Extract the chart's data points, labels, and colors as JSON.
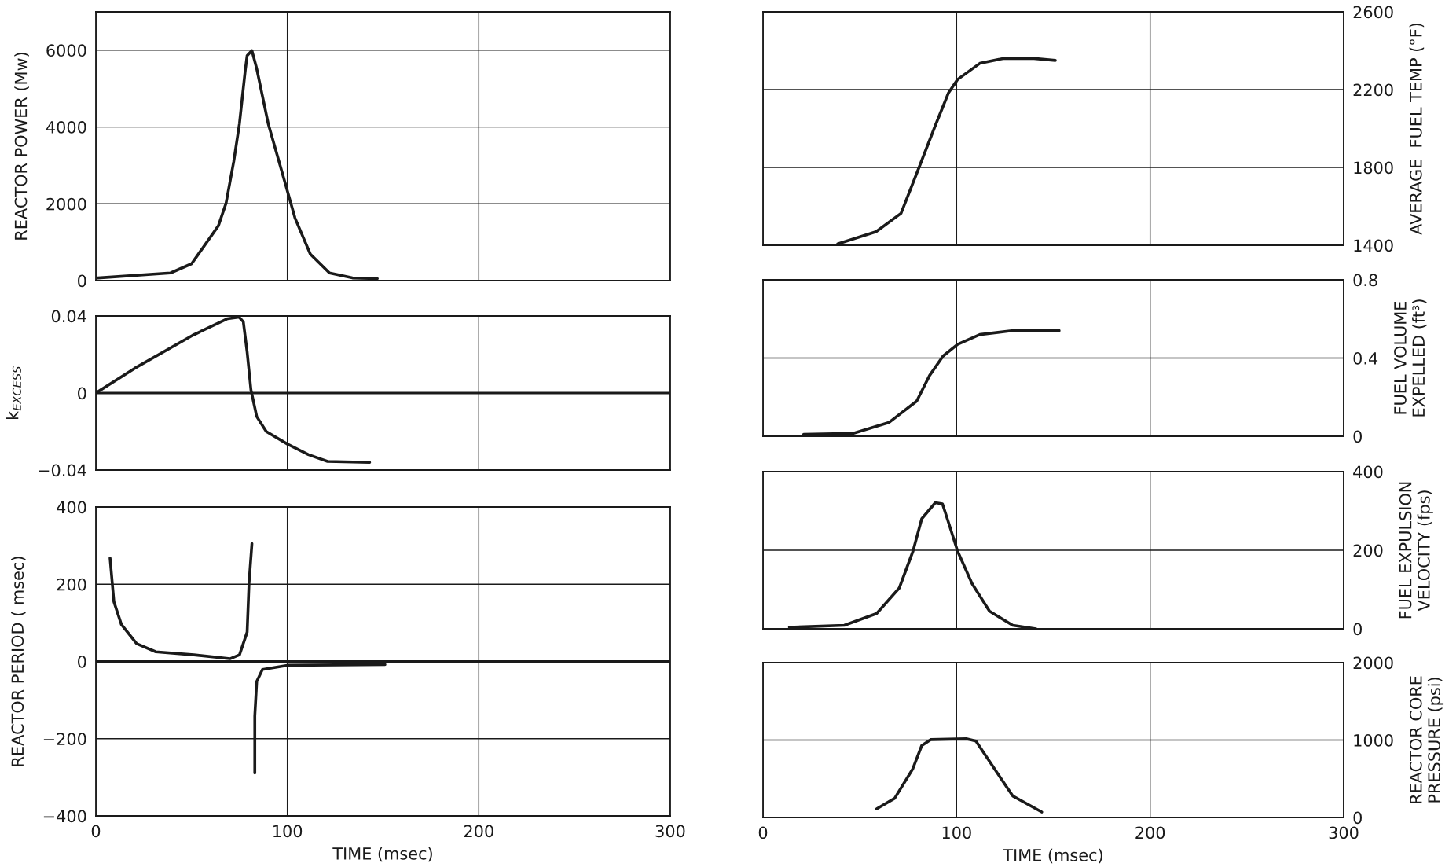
{
  "chart_data": [
    {
      "type": "line",
      "ylabel": "REACTOR POWER (Mw)",
      "xlim": [
        0,
        300
      ],
      "xticks": [
        0,
        100,
        200,
        300
      ],
      "ylim": [
        0,
        7000
      ],
      "yticks": [
        0,
        2000,
        4000,
        6000
      ],
      "grid": true,
      "tick_labels": "y",
      "series": [
        {
          "color": "#1a1a1a",
          "x": [
            1,
            39,
            50,
            64,
            68,
            72,
            75,
            78,
            79,
            81.5,
            84,
            90,
            99.6,
            104,
            112,
            122,
            134,
            147
          ],
          "values": [
            70,
            200,
            440,
            1430,
            2020,
            3100,
            4090,
            5470,
            5860,
            5990,
            5520,
            4090,
            2410,
            1630,
            690,
            200,
            70,
            50
          ]
        }
      ]
    },
    {
      "type": "line",
      "ylabel": "k$_{EXCESS}$",
      "xlim": [
        0,
        300
      ],
      "xticks": [
        0,
        100,
        200,
        300
      ],
      "ylim": [
        -0.04,
        0.04
      ],
      "yticks": [
        {
          "value": -0.04,
          "label": "−0.04"
        },
        0,
        0.04
      ],
      "grid": true,
      "tick_labels": "y",
      "ref_lines": [
        {
          "axis": "y",
          "value": 0,
          "color": "#1a1a1a"
        }
      ],
      "series": [
        {
          "color": "#1a1a1a",
          "x": [
            0,
            20.5,
            50.6,
            68.8,
            74.8,
            77,
            79,
            81,
            84,
            89,
            100,
            111,
            121,
            143
          ],
          "values": [
            0,
            0.013,
            0.03,
            0.0386,
            0.0394,
            0.037,
            0.0213,
            0.0016,
            -0.0122,
            -0.02,
            -0.0265,
            -0.032,
            -0.0355,
            -0.036
          ]
        }
      ]
    },
    {
      "type": "line",
      "ylabel": "REACTOR PERIOD ( msec)",
      "xlabel": "TIME (msec)",
      "xlim": [
        0,
        300
      ],
      "xticks": [
        0,
        100,
        200,
        300
      ],
      "ylim": [
        -400,
        400
      ],
      "yticks": [
        {
          "value": -400,
          "label": "−400"
        },
        {
          "value": -200,
          "label": "−200"
        },
        0,
        200,
        400
      ],
      "grid": true,
      "ref_lines": [
        {
          "axis": "y",
          "value": 0,
          "color": "#1a1a1a"
        }
      ],
      "series": [
        {
          "color": "#1a1a1a",
          "x": [
            7.4,
            9.4,
            13.3,
            21.3,
            31.3,
            51.2,
            70,
            75,
            79,
            80,
            81.5,
            82,
            83,
            83,
            84,
            87,
            100,
            151
          ],
          "values": [
            268,
            155,
            96,
            46,
            25,
            17,
            7,
            17,
            76,
            204,
            305,
            null,
            -289,
            -141,
            -52,
            -21,
            -10,
            -8
          ]
        }
      ]
    },
    {
      "type": "line",
      "ylabel": "AVERAGE  FUEL TEMP (°F)",
      "xlim": [
        0,
        300
      ],
      "xticks": [
        0,
        100,
        200,
        300
      ],
      "ylim": [
        1400,
        2600
      ],
      "yticks": [
        1400,
        1800,
        2200,
        2600
      ],
      "grid": true,
      "tick_labels": "y",
      "series": [
        {
          "color": "#1a1a1a",
          "x": [
            38.6,
            58.4,
            71.3,
            80.6,
            88.8,
            95.8,
            100.5,
            112,
            124,
            140,
            151
          ],
          "values": [
            1407,
            1470,
            1564,
            1800,
            2010,
            2183,
            2252,
            2335,
            2360,
            2360,
            2350
          ]
        }
      ]
    },
    {
      "type": "line",
      "ylabel": "FUEL VOLUME\nEXPELLED (ft³)",
      "xlim": [
        0,
        300
      ],
      "xticks": [
        0,
        100,
        200,
        300
      ],
      "ylim": [
        0,
        0.8
      ],
      "yticks": [
        0,
        0.4,
        0.8
      ],
      "grid": true,
      "tick_labels": "y",
      "series": [
        {
          "color": "#1a1a1a",
          "x": [
            21,
            46.7,
            65,
            79.4,
            86,
            93,
            100.5,
            112,
            128.5,
            153
          ],
          "values": [
            0.01,
            0.015,
            0.07,
            0.18,
            0.31,
            0.41,
            0.47,
            0.52,
            0.54,
            0.54
          ]
        }
      ]
    },
    {
      "type": "line",
      "ylabel": "FUEL EXPULSION\nVELOCITY (fps)",
      "xlim": [
        0,
        300
      ],
      "xticks": [
        0,
        100,
        200,
        300
      ],
      "ylim": [
        0,
        400
      ],
      "yticks": [
        0,
        200,
        400
      ],
      "grid": true,
      "tick_labels": "y",
      "series": [
        {
          "color": "#1a1a1a",
          "x": [
            13.6,
            42,
            58.7,
            70.4,
            77.5,
            82,
            89,
            92.7,
            96,
            100.5,
            108,
            117,
            129,
            141
          ],
          "values": [
            4,
            9,
            39,
            104,
            198,
            280,
            321,
            318,
            268,
            198,
            115,
            45,
            9,
            0
          ]
        }
      ]
    },
    {
      "type": "line",
      "ylabel": "REACTOR CORE\nPRESSURE (psi)",
      "xlabel": "TIME (msec)",
      "xlim": [
        0,
        300
      ],
      "xticks": [
        0,
        100,
        200,
        300
      ],
      "ylim": [
        0,
        2000
      ],
      "yticks": [
        0,
        1000,
        2000
      ],
      "grid": true,
      "series": [
        {
          "color": "#1a1a1a",
          "x": [
            58.7,
            68,
            77.4,
            82,
            86.6,
            105,
            110,
            119.5,
            129,
            144
          ],
          "values": [
            112,
            248,
            630,
            929,
            1006,
            1018,
            988,
            632,
            278,
            71
          ]
        }
      ]
    }
  ]
}
